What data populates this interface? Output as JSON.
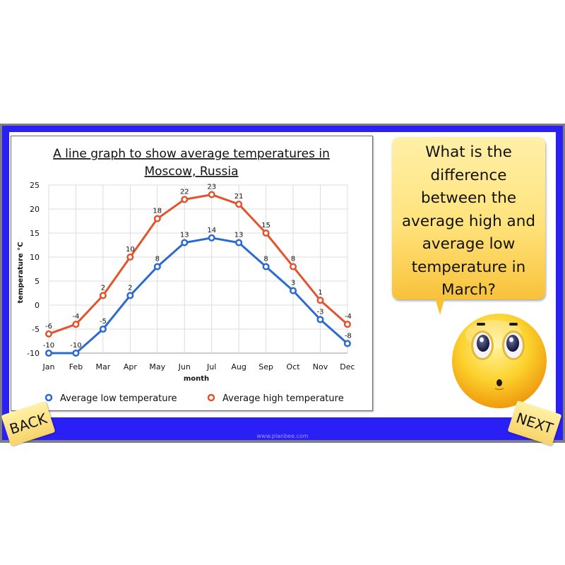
{
  "slide": {
    "frame_color": "#2a1ff5",
    "footer_url": "www.planbee.com"
  },
  "chart": {
    "title_line1": "A line graph to show average temperatures in",
    "title_line2": "Moscow, Russia",
    "ylabel": "temperature °C",
    "xlabel": "month",
    "legend": {
      "low": "Average low temperature",
      "high": "Average high temperature"
    }
  },
  "chart_data": {
    "type": "line",
    "title": "A line graph to show average temperatures in Moscow, Russia",
    "xlabel": "month",
    "ylabel": "temperature °C",
    "categories": [
      "Jan",
      "Feb",
      "Mar",
      "Apr",
      "May",
      "Jun",
      "Jul",
      "Aug",
      "Sep",
      "Oct",
      "Nov",
      "Dec"
    ],
    "series": [
      {
        "name": "Average low temperature",
        "color": "#2b6ad0",
        "values": [
          -10,
          -10,
          -5,
          2,
          8,
          13,
          14,
          13,
          8,
          3,
          -3,
          -8
        ]
      },
      {
        "name": "Average high temperature",
        "color": "#e1542e",
        "values": [
          -6,
          -4,
          2,
          10,
          18,
          22,
          23,
          21,
          15,
          8,
          1,
          -4
        ]
      }
    ],
    "ylim": [
      -10,
      25
    ],
    "yticks": [
      -10,
      -5,
      0,
      5,
      10,
      15,
      20,
      25
    ],
    "grid": true,
    "data_labels": true,
    "legend_position": "bottom"
  },
  "question": {
    "lines": [
      "What is the",
      "difference",
      "between the",
      "average high and",
      "average low",
      "temperature in",
      "March?"
    ]
  },
  "nav": {
    "back_label": "BACK",
    "next_label": "NEXT"
  }
}
